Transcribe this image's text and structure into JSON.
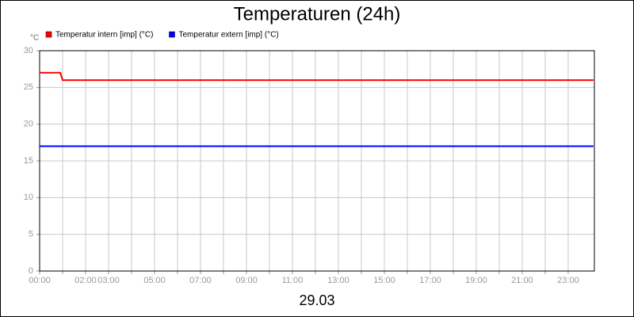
{
  "chart_data": {
    "type": "line",
    "title": "Temperaturen (24h)",
    "y_unit": "°C",
    "x_label": "29.03",
    "xlim": [
      0,
      24.14
    ],
    "ylim": [
      0,
      30
    ],
    "yticks": [
      0,
      5,
      10,
      15,
      20,
      25,
      30
    ],
    "xticks": [
      {
        "value": 0,
        "label": "00:00"
      },
      {
        "value": 2,
        "label": "02:00"
      },
      {
        "value": 3,
        "label": "03:00"
      },
      {
        "value": 5,
        "label": "05:00"
      },
      {
        "value": 7,
        "label": "07:00"
      },
      {
        "value": 9,
        "label": "09:00"
      },
      {
        "value": 11,
        "label": "11:00"
      },
      {
        "value": 13,
        "label": "13:00"
      },
      {
        "value": 15,
        "label": "15:00"
      },
      {
        "value": 17,
        "label": "17:00"
      },
      {
        "value": 19,
        "label": "19:00"
      },
      {
        "value": 21,
        "label": "21:00"
      },
      {
        "value": 23,
        "label": "23:00"
      }
    ],
    "x_minor_ticks": [
      1,
      4,
      6,
      8,
      10,
      12,
      14,
      16,
      18,
      20,
      22
    ],
    "grid": true,
    "legend": "top-left",
    "series": [
      {
        "name": "Temperatur intern [imp] (°C)",
        "color": "#ff0000",
        "x": [
          0,
          0.9,
          1.0,
          24.1
        ],
        "values": [
          27,
          27,
          26,
          26
        ]
      },
      {
        "name": "Temperatur extern [imp] (°C)",
        "color": "#0000ff",
        "x": [
          0,
          24.1
        ],
        "values": [
          17,
          17
        ]
      }
    ]
  }
}
